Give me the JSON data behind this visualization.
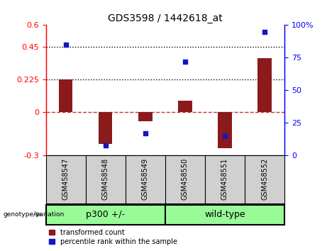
{
  "title": "GDS3598 / 1442618_at",
  "samples": [
    "GSM458547",
    "GSM458548",
    "GSM458549",
    "GSM458550",
    "GSM458551",
    "GSM458552"
  ],
  "red_bars": [
    0.225,
    -0.22,
    -0.065,
    0.08,
    -0.25,
    0.37
  ],
  "blue_dots": [
    85,
    8,
    17,
    72,
    15,
    95
  ],
  "ylim_left": [
    -0.3,
    0.6
  ],
  "ylim_right": [
    0,
    100
  ],
  "yticks_left": [
    -0.3,
    0,
    0.225,
    0.45,
    0.6
  ],
  "ytick_labels_left": [
    "-0.3",
    "0",
    "0.225",
    "0.45",
    "0.6"
  ],
  "yticks_right": [
    0,
    25,
    50,
    75,
    100
  ],
  "ytick_labels_right": [
    "0",
    "25",
    "50",
    "75",
    "100%"
  ],
  "hlines_dotted": [
    0.225,
    0.45
  ],
  "hline_dashed": 0,
  "bar_color": "#8B1A1A",
  "dot_color": "#1414c8",
  "bar_width": 0.35,
  "dot_size": 22,
  "legend_items": [
    "transformed count",
    "percentile rank within the sample"
  ],
  "group_labels": [
    "p300 +/-",
    "wild-type"
  ],
  "group_color": "#98FB98",
  "gray_color": "#d0d0d0"
}
